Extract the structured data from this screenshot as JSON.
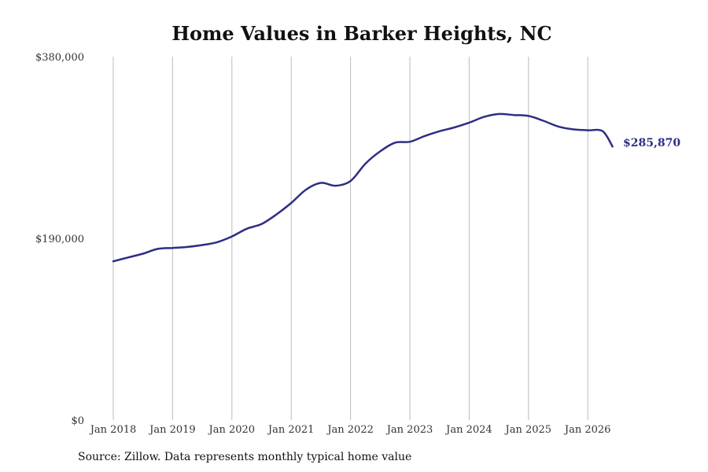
{
  "chart_data": {
    "type": "line",
    "title": "Home Values in Barker Heights, NC",
    "source_note": "Source: Zillow. Data represents monthly typical home value",
    "ylim": [
      0,
      380000
    ],
    "y_ticks": [
      {
        "value": 0,
        "label": "$0"
      },
      {
        "value": 190000,
        "label": "$190,000"
      },
      {
        "value": 380000,
        "label": "$380,000"
      }
    ],
    "x_ticks": [
      {
        "value": "2018-01",
        "label": "Jan 2018"
      },
      {
        "value": "2019-01",
        "label": "Jan 2019"
      },
      {
        "value": "2020-01",
        "label": "Jan 2020"
      },
      {
        "value": "2021-01",
        "label": "Jan 2021"
      },
      {
        "value": "2022-01",
        "label": "Jan 2022"
      },
      {
        "value": "2023-01",
        "label": "Jan 2023"
      },
      {
        "value": "2024-01",
        "label": "Jan 2024"
      },
      {
        "value": "2025-01",
        "label": "Jan 2025"
      },
      {
        "value": "2026-01",
        "label": "Jan 2026"
      }
    ],
    "grid": "vertical",
    "line_color": "#2e2e84",
    "grid_color": "#bbbbbb",
    "end_label": "$285,870",
    "series": [
      {
        "points": [
          [
            "2018-01",
            166000
          ],
          [
            "2018-04",
            170000
          ],
          [
            "2018-07",
            174000
          ],
          [
            "2018-10",
            179000
          ],
          [
            "2019-01",
            180000
          ],
          [
            "2019-04",
            181000
          ],
          [
            "2019-07",
            183000
          ],
          [
            "2019-10",
            186000
          ],
          [
            "2020-01",
            192000
          ],
          [
            "2020-04",
            200000
          ],
          [
            "2020-07",
            205000
          ],
          [
            "2020-10",
            215000
          ],
          [
            "2021-01",
            227000
          ],
          [
            "2021-04",
            241000
          ],
          [
            "2021-07",
            248000
          ],
          [
            "2021-10",
            245000
          ],
          [
            "2022-01",
            250000
          ],
          [
            "2022-04",
            268000
          ],
          [
            "2022-07",
            281000
          ],
          [
            "2022-10",
            290000
          ],
          [
            "2023-01",
            291000
          ],
          [
            "2023-04",
            297000
          ],
          [
            "2023-07",
            302000
          ],
          [
            "2023-10",
            306000
          ],
          [
            "2024-01",
            311000
          ],
          [
            "2024-04",
            317000
          ],
          [
            "2024-07",
            320000
          ],
          [
            "2024-10",
            319000
          ],
          [
            "2025-01",
            318000
          ],
          [
            "2025-04",
            313000
          ],
          [
            "2025-07",
            307000
          ],
          [
            "2025-10",
            304000
          ],
          [
            "2026-01",
            303000
          ],
          [
            "2026-04",
            302000
          ],
          [
            "2026-06",
            286000
          ]
        ]
      }
    ]
  }
}
